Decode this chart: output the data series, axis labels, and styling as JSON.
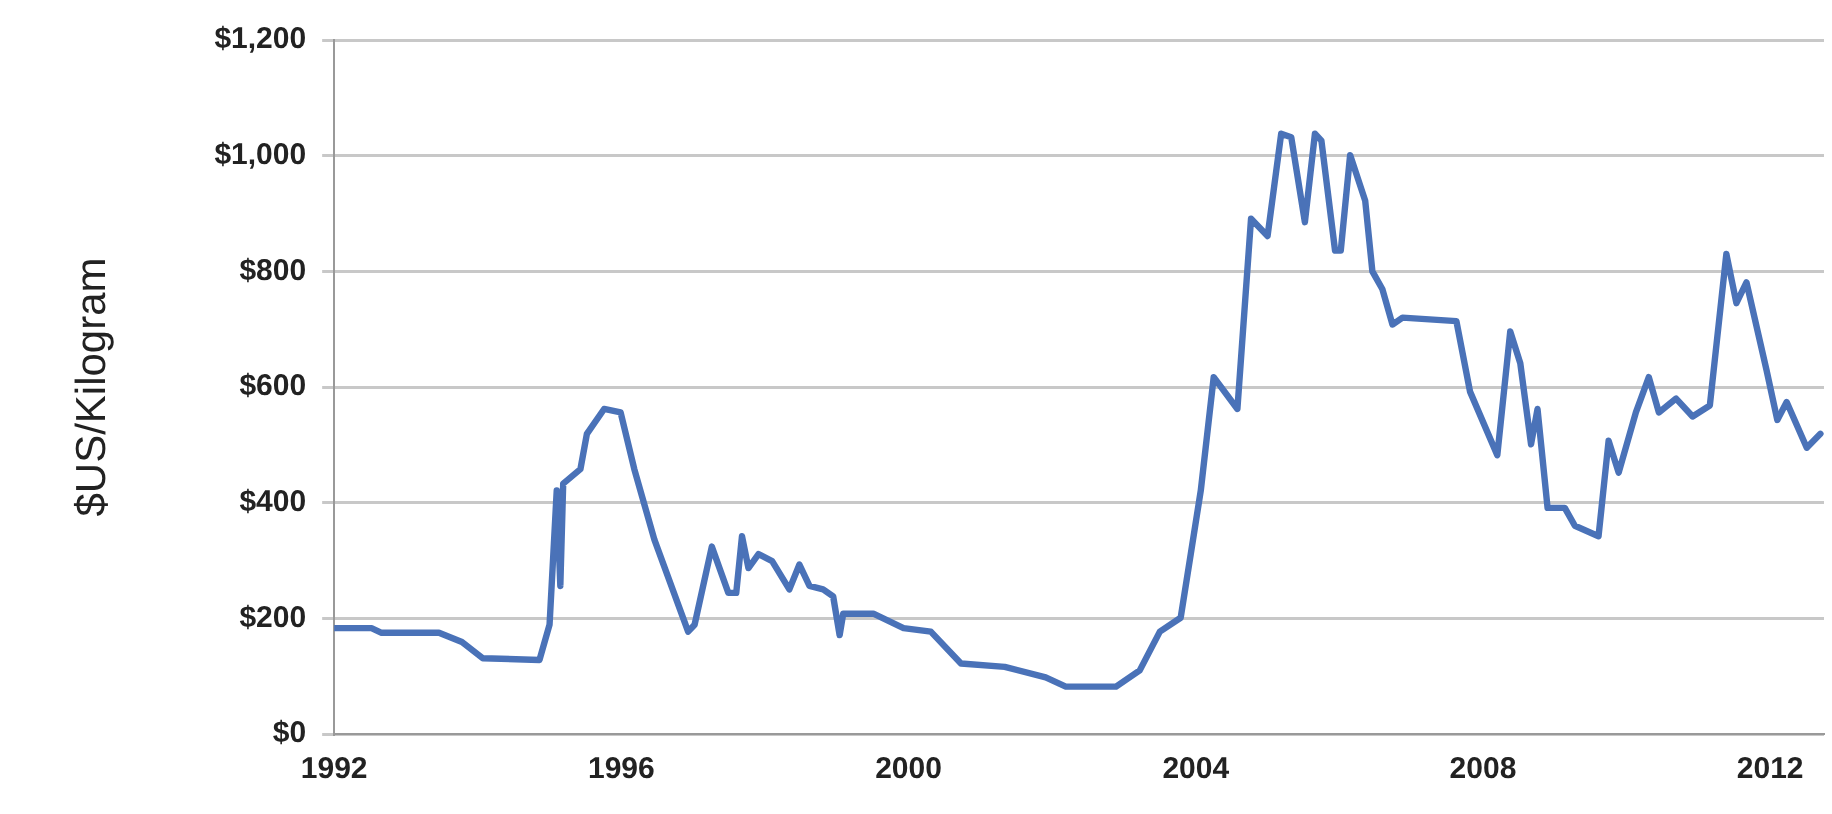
{
  "chart_data": {
    "type": "line",
    "ylabel": "$US/Kilogram",
    "x": [
      1992.0,
      1992.52,
      1992.66,
      1993.46,
      1993.78,
      1994.07,
      1994.86,
      1995.0,
      1995.1,
      1995.15,
      1995.19,
      1995.43,
      1995.52,
      1995.76,
      1995.99,
      1996.18,
      1996.46,
      1996.93,
      1997.02,
      1997.26,
      1997.49,
      1997.6,
      1997.68,
      1997.77,
      1997.91,
      1998.1,
      1998.34,
      1998.48,
      1998.62,
      1998.81,
      1998.95,
      1999.04,
      1999.09,
      1999.51,
      1999.93,
      2000.31,
      2000.73,
      2001.34,
      2001.91,
      2002.19,
      2002.89,
      2003.22,
      2003.5,
      2003.79,
      2003.93,
      2004.07,
      2004.25,
      2004.58,
      2004.77,
      2005.0,
      2005.19,
      2005.33,
      2005.52,
      2005.66,
      2005.75,
      2005.94,
      2006.02,
      2006.15,
      2006.36,
      2006.46,
      2006.6,
      2006.74,
      2006.88,
      2007.63,
      2007.82,
      2008.2,
      2008.38,
      2008.52,
      2008.67,
      2008.76,
      2008.9,
      2009.14,
      2009.28,
      2009.61,
      2009.75,
      2009.89,
      2010.13,
      2010.31,
      2010.45,
      2010.69,
      2010.92,
      2011.16,
      2011.39,
      2011.53,
      2011.67,
      2011.95,
      2012.1,
      2012.23,
      2012.51,
      2012.7
    ],
    "series": [
      {
        "color": "#4a72b8",
        "values": [
          183,
          183,
          175,
          175,
          159,
          131,
          128,
          189,
          421,
          256,
          433,
          458,
          519,
          562,
          556,
          458,
          336,
          177,
          189,
          324,
          244,
          244,
          342,
          287,
          311,
          299,
          250,
          293,
          256,
          250,
          238,
          171,
          208,
          208,
          183,
          177,
          122,
          116,
          98,
          82,
          82,
          110,
          177,
          201,
          311,
          421,
          617,
          562,
          891,
          861,
          1038,
          1032,
          885,
          1038,
          1026,
          836,
          836,
          1001,
          922,
          800,
          769,
          708,
          720,
          714,
          592,
          482,
          696,
          641,
          501,
          562,
          391,
          391,
          360,
          342,
          507,
          452,
          556,
          617,
          556,
          580,
          549,
          568,
          830,
          745,
          781,
          629,
          543,
          574,
          495,
          519
        ]
      }
    ],
    "xlim": [
      1992,
      2012.75
    ],
    "xticks": [
      1992,
      1996,
      2000,
      2004,
      2008,
      2012
    ],
    "ylim": [
      0,
      1200
    ],
    "yticks": [
      {
        "value": 0,
        "label": "$0"
      },
      {
        "value": 200,
        "label": "$200"
      },
      {
        "value": 400,
        "label": "$400"
      },
      {
        "value": 600,
        "label": "$600"
      },
      {
        "value": 800,
        "label": "$800"
      },
      {
        "value": 1000,
        "label": "$1,000"
      },
      {
        "value": 1200,
        "label": "$1,200"
      }
    ],
    "grid": "y",
    "legend": false,
    "marker": "none",
    "line_style": "solid"
  }
}
